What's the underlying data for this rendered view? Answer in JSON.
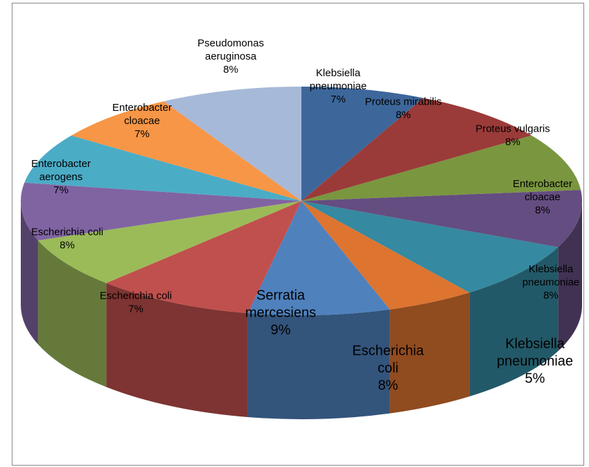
{
  "chart_data": {
    "type": "pie",
    "categories": [
      "Klebsiella pneumoniae",
      "Proteus mirabilis",
      "Proteus vulgaris",
      "Enterobacter cloacae",
      "Klebsiella pneumoniae",
      "Klebsiella pneumoniae",
      "Escherichia coli",
      "Serratia mercesiens",
      "Escherichia coli",
      "Escherichia coli",
      "Enterobacter aerogens",
      "Enterobacter cloacae",
      "Pseudomonas aeruginosa"
    ],
    "values": [
      7,
      8,
      8,
      8,
      8,
      5,
      8,
      9,
      7,
      8,
      7,
      7,
      8
    ],
    "value_labels": [
      "7%",
      "8%",
      "8%",
      "8%",
      "8%",
      "5%",
      "8%",
      "9%",
      "7%",
      "8%",
      "7%",
      "7%",
      "8%"
    ],
    "colors": [
      "#3d679b",
      "#9a3b39",
      "#7a963f",
      "#644d80",
      "#3589a0",
      "#dd7430",
      "#4f81bd",
      "#c0504d",
      "#9bbb59",
      "#8064a2",
      "#4bacc6",
      "#f79646",
      "#a7b9d9"
    ]
  }
}
